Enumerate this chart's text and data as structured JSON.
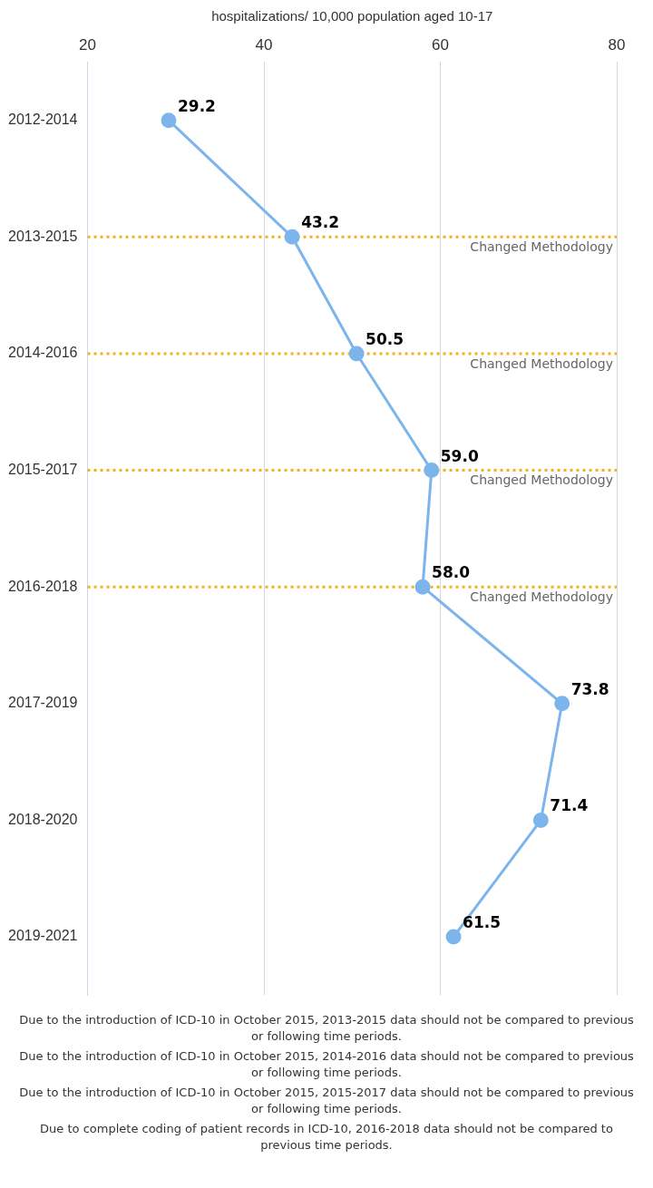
{
  "chart_data": {
    "type": "line",
    "orientation": "horizontal",
    "xlabel": "hospitalizations/ 10,000 population aged 10-17",
    "categories": [
      "2012-2014",
      "2013-2015",
      "2014-2016",
      "2015-2017",
      "2016-2018",
      "2017-2019",
      "2018-2020",
      "2019-2021"
    ],
    "series": [
      {
        "color": "#7cb5ec",
        "values": [
          29.2,
          43.2,
          50.5,
          59.0,
          58.0,
          73.8,
          71.4,
          61.5
        ]
      }
    ],
    "value_labels": [
      "29.2",
      "43.2",
      "50.5",
      "59.0",
      "58.0",
      "73.8",
      "71.4",
      "61.5"
    ],
    "xlim": [
      20,
      80
    ],
    "xticks": [
      20,
      40,
      60,
      80
    ],
    "grid": "x",
    "marker": "circle",
    "line_style": "solid",
    "ref_lines": [
      {
        "axis": "y",
        "value": "2013-2015",
        "label": "Changed Methodology",
        "color": "#f0b31d",
        "line_style": "dotted"
      },
      {
        "axis": "y",
        "value": "2014-2016",
        "label": "Changed Methodology",
        "color": "#f0b31d",
        "line_style": "dotted"
      },
      {
        "axis": "y",
        "value": "2015-2017",
        "label": "Changed Methodology",
        "color": "#f0b31d",
        "line_style": "dotted"
      },
      {
        "axis": "y",
        "value": "2016-2018",
        "label": "Changed Methodology",
        "color": "#f0b31d",
        "line_style": "dotted"
      }
    ],
    "annotations": [
      "Due to the introduction of ICD-10 in October 2015, 2013-2015 data should not be compared to previous or following time periods.",
      "Due to the introduction of ICD-10 in October 2015, 2014-2016 data should not be compared to previous or following time periods.",
      "Due to the introduction of ICD-10 in October 2015, 2015-2017 data should not be compared to previous or following time periods.",
      "Due to complete coding of patient records in ICD-10, 2016-2018 data should not be compared to previous time periods."
    ]
  }
}
